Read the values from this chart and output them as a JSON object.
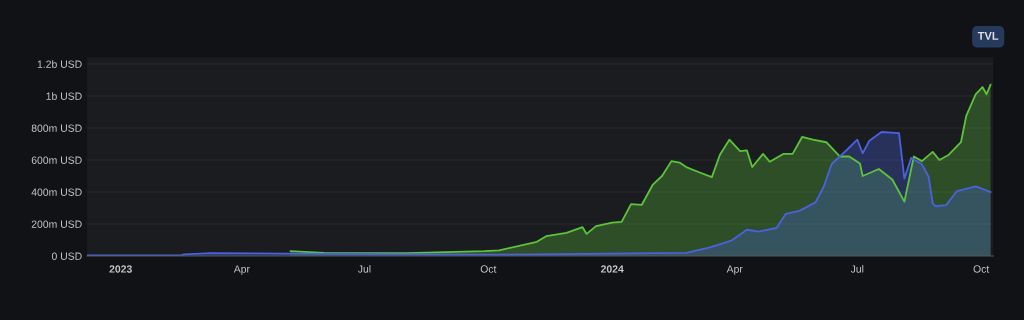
{
  "chart_data": {
    "type": "area",
    "annotations": [
      "TVL"
    ],
    "series": [
      {
        "color": "#5cc43a",
        "x": [
          "2023-05-07",
          "2023-06-01",
          "2023-08-01",
          "2023-09-28",
          "2023-10-09",
          "2023-11-06",
          "2023-11-13",
          "2023-11-28",
          "2023-12-10",
          "2023-12-13",
          "2023-12-20",
          "2024-01-01",
          "2024-01-08",
          "2024-01-15",
          "2024-01-23",
          "2024-01-31",
          "2024-02-07",
          "2024-02-14",
          "2024-02-20",
          "2024-02-25",
          "2024-03-06",
          "2024-03-15",
          "2024-03-21",
          "2024-03-28",
          "2024-04-05",
          "2024-04-10",
          "2024-04-14",
          "2024-04-22",
          "2024-04-27",
          "2024-05-07",
          "2024-05-14",
          "2024-05-21",
          "2024-05-29",
          "2024-06-08",
          "2024-06-18",
          "2024-06-25",
          "2024-07-03",
          "2024-07-05",
          "2024-07-17",
          "2024-07-27",
          "2024-08-05",
          "2024-08-12",
          "2024-08-18",
          "2024-08-26",
          "2024-08-31",
          "2024-09-07",
          "2024-09-16",
          "2024-09-20",
          "2024-09-27",
          "2024-10-02",
          "2024-10-05",
          "2024-10-08"
        ],
        "values": [
          31000000.0,
          20000000.0,
          18000000.0,
          30000000.0,
          35000000.0,
          89000000.0,
          124000000.0,
          145000000.0,
          180000000.0,
          138000000.0,
          187000000.0,
          209000000.0,
          213000000.0,
          324000000.0,
          320000000.0,
          444000000.0,
          500000000.0,
          593000000.0,
          584000000.0,
          556000000.0,
          522000000.0,
          493000000.0,
          633000000.0,
          727000000.0,
          656000000.0,
          660000000.0,
          556000000.0,
          638000000.0,
          589000000.0,
          638000000.0,
          638000000.0,
          744000000.0,
          727000000.0,
          711000000.0,
          622000000.0,
          622000000.0,
          578000000.0,
          500000000.0,
          544000000.0,
          478000000.0,
          340000000.0,
          622000000.0,
          593000000.0,
          651000000.0,
          600000000.0,
          633000000.0,
          711000000.0,
          878000000.0,
          1011000000.0,
          1056000000.0,
          1011000000.0,
          1071000000.0
        ]
      },
      {
        "color": "#4a62e0",
        "x": [
          "2022-12-07",
          "2023-02-14",
          "2023-02-17",
          "2023-03-09",
          "2023-06-01",
          "2023-10-09",
          "2024-02-25",
          "2024-03-13",
          "2024-03-30",
          "2024-04-10",
          "2024-04-19",
          "2024-05-02",
          "2024-05-09",
          "2024-05-19",
          "2024-05-31",
          "2024-06-06",
          "2024-06-12",
          "2024-06-22",
          "2024-07-01",
          "2024-07-05",
          "2024-07-10",
          "2024-07-19",
          "2024-08-01",
          "2024-08-05",
          "2024-08-10",
          "2024-08-18",
          "2024-08-23",
          "2024-08-26",
          "2024-08-28",
          "2024-09-05",
          "2024-09-13",
          "2024-09-27",
          "2024-10-08"
        ],
        "values": [
          3000000.0,
          3000000.0,
          10000000.0,
          18000000.0,
          13000000.0,
          8000000.0,
          20000000.0,
          53000000.0,
          98000000.0,
          164000000.0,
          153000000.0,
          175000000.0,
          264000000.0,
          282000000.0,
          335000000.0,
          431000000.0,
          575000000.0,
          653000000.0,
          727000000.0,
          642000000.0,
          720000000.0,
          775000000.0,
          768000000.0,
          484000000.0,
          613000000.0,
          573000000.0,
          495000000.0,
          329000000.0,
          311000000.0,
          318000000.0,
          406000000.0,
          435000000.0,
          400000000.0
        ]
      }
    ],
    "xlim": [
      "2022-12-07",
      "2024-10-10"
    ],
    "xticks": [
      {
        "value": "2023-01-01",
        "label": "2023"
      },
      {
        "value": "2023-04-01",
        "label": "Apr"
      },
      {
        "value": "2023-07-01",
        "label": "Jul"
      },
      {
        "value": "2023-10-01",
        "label": "Oct"
      },
      {
        "value": "2024-01-01",
        "label": "2024"
      },
      {
        "value": "2024-04-01",
        "label": "Apr"
      },
      {
        "value": "2024-07-01",
        "label": "Jul"
      },
      {
        "value": "2024-10-01",
        "label": "Oct"
      }
    ],
    "ylim": [
      0,
      1240000000
    ],
    "yticks": [
      {
        "value": 0,
        "label": "0 USD"
      },
      {
        "value": 200000000,
        "label": "200m USD"
      },
      {
        "value": 400000000,
        "label": "400m USD"
      },
      {
        "value": 600000000,
        "label": "600m USD"
      },
      {
        "value": 800000000,
        "label": "800m USD"
      },
      {
        "value": 1000000000,
        "label": "1b USD"
      },
      {
        "value": 1200000000,
        "label": "1.2b USD"
      }
    ],
    "grid": "y"
  }
}
